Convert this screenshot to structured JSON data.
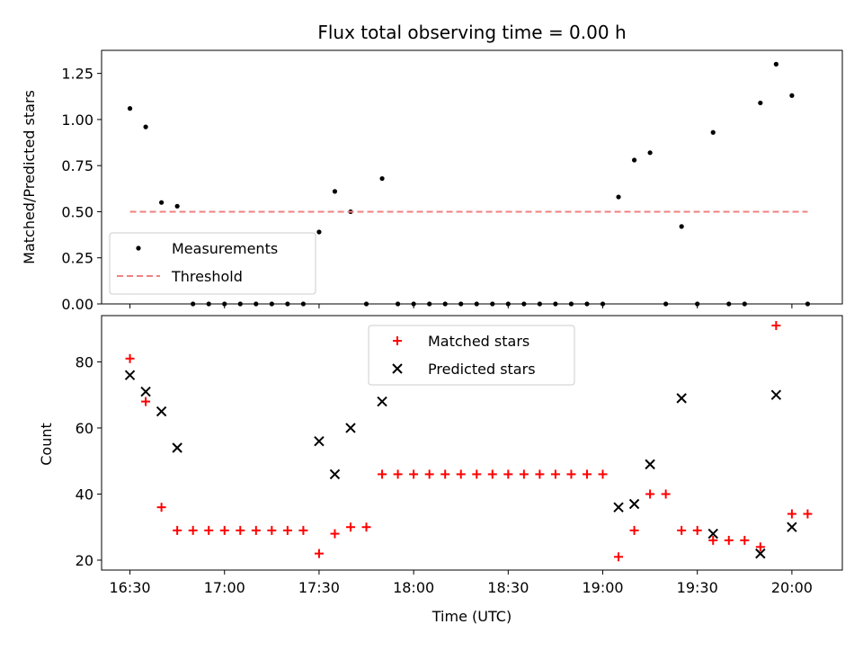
{
  "chart_data": [
    {
      "type": "scatter",
      "title": "Flux total observing time = 0.00 h",
      "xlabel": "",
      "ylabel": "Matched/Predicted stars",
      "xlim": [
        "16:21",
        "20:16"
      ],
      "ylim": [
        0,
        1.375
      ],
      "yticks": [
        "0.00",
        "0.25",
        "0.50",
        "0.75",
        "1.00",
        "1.25"
      ],
      "legend_position": "lower-left",
      "series": [
        {
          "name": "Measurements",
          "marker": "dot",
          "color": "#000000",
          "x": [
            "16:30",
            "16:35",
            "16:40",
            "16:45",
            "16:50",
            "16:55",
            "17:00",
            "17:05",
            "17:10",
            "17:15",
            "17:20",
            "17:25",
            "17:30",
            "17:35",
            "17:40",
            "17:45",
            "17:50",
            "17:55",
            "18:00",
            "18:05",
            "18:10",
            "18:15",
            "18:20",
            "18:25",
            "18:30",
            "18:35",
            "18:40",
            "18:45",
            "18:50",
            "18:55",
            "19:00",
            "19:05",
            "19:10",
            "19:15",
            "19:20",
            "19:25",
            "19:30",
            "19:35",
            "19:40",
            "19:45",
            "19:50",
            "19:55",
            "20:00",
            "20:05"
          ],
          "y": [
            1.06,
            0.96,
            0.55,
            0.53,
            0,
            0,
            0,
            0,
            0,
            0,
            0,
            0,
            0.39,
            0.61,
            0.5,
            0,
            0.68,
            0,
            0,
            0,
            0,
            0,
            0,
            0,
            0,
            0,
            0,
            0,
            0,
            0,
            0,
            0.58,
            0.78,
            0.82,
            0,
            0.42,
            0,
            0.93,
            0,
            0,
            1.09,
            1.3,
            1.13,
            0
          ]
        },
        {
          "name": "Threshold",
          "line": "dashed",
          "color": "#f08080",
          "x": [
            "16:30",
            "20:05"
          ],
          "y": [
            0.5,
            0.5
          ]
        }
      ]
    },
    {
      "type": "scatter",
      "title": "",
      "xlabel": "Time (UTC)",
      "ylabel": "Count",
      "xlim": [
        "16:21",
        "20:16"
      ],
      "ylim": [
        17,
        94
      ],
      "yticks": [
        "20",
        "40",
        "60",
        "80"
      ],
      "xticks": [
        "16:30",
        "17:00",
        "17:30",
        "18:00",
        "18:30",
        "19:00",
        "19:30",
        "20:00"
      ],
      "legend_position": "upper-center",
      "series": [
        {
          "name": "Matched stars",
          "marker": "plus",
          "color": "#ff0000",
          "x": [
            "16:30",
            "16:35",
            "16:40",
            "16:45",
            "16:50",
            "16:55",
            "17:00",
            "17:05",
            "17:10",
            "17:15",
            "17:20",
            "17:25",
            "17:30",
            "17:35",
            "17:40",
            "17:45",
            "17:50",
            "17:55",
            "18:00",
            "18:05",
            "18:10",
            "18:15",
            "18:20",
            "18:25",
            "18:30",
            "18:35",
            "18:40",
            "18:45",
            "18:50",
            "18:55",
            "19:00",
            "19:05",
            "19:10",
            "19:15",
            "19:20",
            "19:25",
            "19:30",
            "19:35",
            "19:40",
            "19:45",
            "19:50",
            "19:55",
            "20:00",
            "20:05"
          ],
          "y": [
            81,
            68,
            36,
            29,
            29,
            29,
            29,
            29,
            29,
            29,
            29,
            29,
            22,
            28,
            30,
            30,
            46,
            46,
            46,
            46,
            46,
            46,
            46,
            46,
            46,
            46,
            46,
            46,
            46,
            46,
            46,
            21,
            29,
            40,
            40,
            29,
            29,
            26,
            26,
            26,
            24,
            91,
            34,
            34
          ]
        },
        {
          "name": "Predicted stars",
          "marker": "x",
          "color": "#000000",
          "x": [
            "16:30",
            "16:35",
            "16:40",
            "16:45",
            "17:30",
            "17:35",
            "17:40",
            "17:50",
            "19:05",
            "19:10",
            "19:15",
            "19:25",
            "19:35",
            "19:50",
            "19:55",
            "20:00"
          ],
          "y": [
            76,
            71,
            65,
            54,
            56,
            46,
            60,
            68,
            36,
            37,
            49,
            69,
            28,
            22,
            70,
            30
          ]
        }
      ]
    }
  ]
}
